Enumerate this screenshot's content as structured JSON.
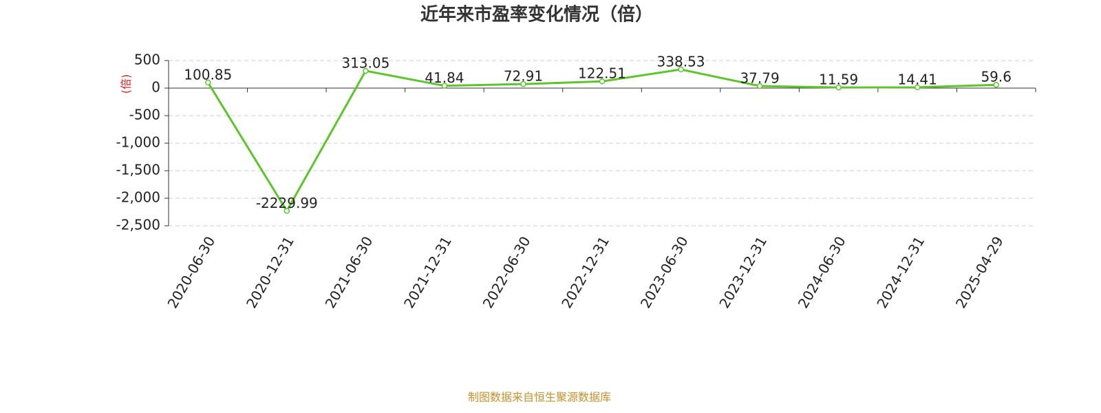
{
  "chart_data": {
    "type": "line",
    "title": "近年来市盈率变化情况（倍）",
    "y_label": "(倍)",
    "source": "制图数据来自恒生聚源数据库",
    "categories": [
      "2020-06-30",
      "2020-12-31",
      "2021-06-30",
      "2021-12-31",
      "2022-06-30",
      "2022-12-31",
      "2023-06-30",
      "2023-12-31",
      "2024-06-30",
      "2024-12-31",
      "2025-04-29"
    ],
    "values": [
      100.85,
      -2229.99,
      313.05,
      41.84,
      72.91,
      122.51,
      338.53,
      37.79,
      11.59,
      14.41,
      59.6
    ],
    "color": "#5cc52a",
    "ylim": [
      -2500,
      500
    ],
    "yticks": [
      500,
      0,
      -500,
      {
        "value": -1000,
        "label": "-1,000"
      },
      {
        "value": -1500,
        "label": "-1,500"
      },
      {
        "value": -2000,
        "label": "-2,000"
      },
      {
        "value": -2500,
        "label": "-2,500"
      }
    ],
    "grid": true
  }
}
